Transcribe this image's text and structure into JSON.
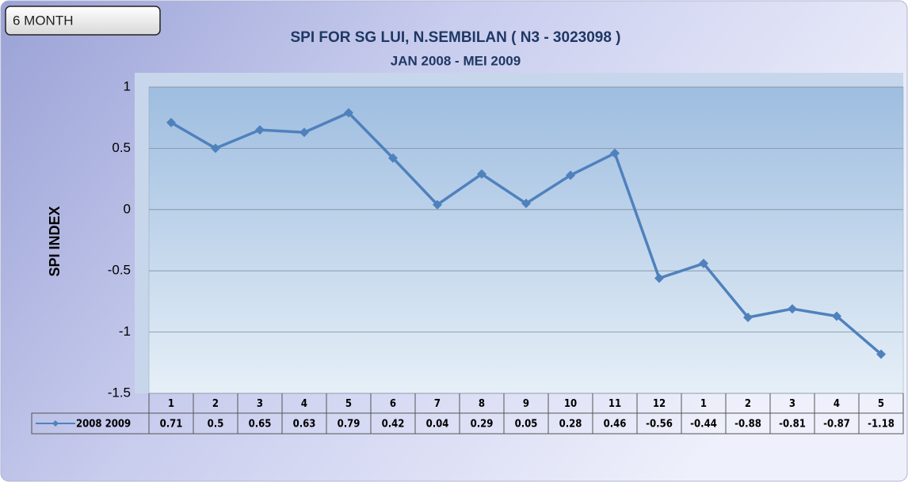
{
  "button": "6 MONTH",
  "chart_data": {
    "type": "line",
    "title": "SPI FOR SG LUI, N.SEMBILAN ( N3 - 3023098 )",
    "subtitle": "JAN 2008 - MEI 2009",
    "y_label": "SPI INDEX",
    "categories": [
      "1",
      "2",
      "3",
      "4",
      "5",
      "6",
      "7",
      "8",
      "9",
      "10",
      "11",
      "12",
      "1",
      "2",
      "3",
      "4",
      "5"
    ],
    "series": [
      {
        "name": "2008 2009",
        "color": "#4f81bd",
        "values": [
          0.71,
          0.5,
          0.65,
          0.63,
          0.79,
          0.42,
          0.04,
          0.29,
          0.05,
          0.28,
          0.46,
          -0.56,
          -0.44,
          -0.88,
          -0.81,
          -0.87,
          -1.18
        ]
      }
    ],
    "ylim": [
      -1.5,
      1
    ],
    "yticks": [
      -1.5,
      -1,
      -0.5,
      0,
      0.5,
      1
    ],
    "grid": true
  }
}
